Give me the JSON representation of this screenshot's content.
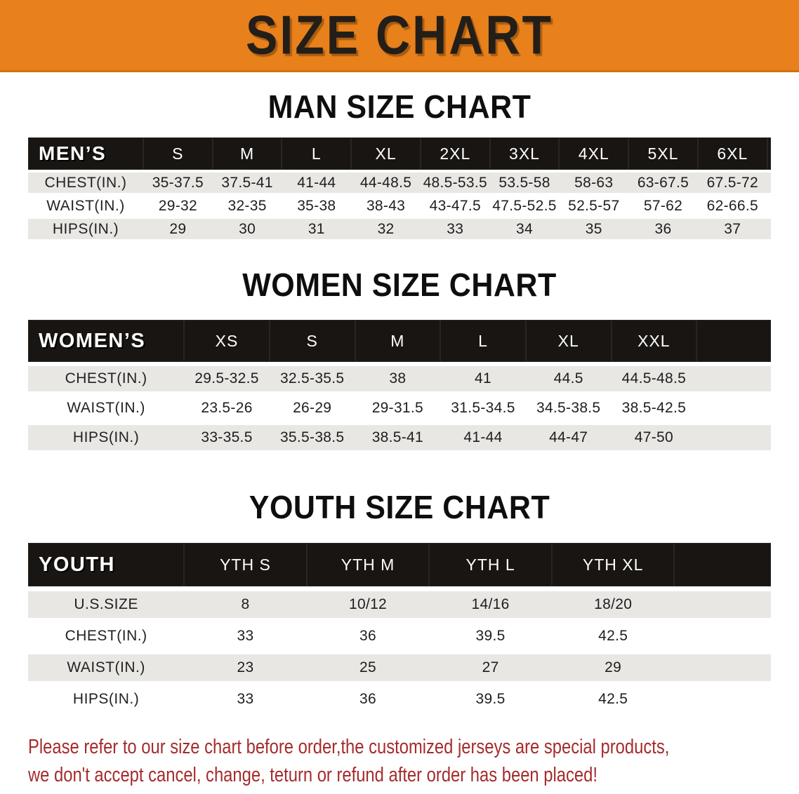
{
  "banner": {
    "title": "SIZE CHART",
    "bg_color": "#E8811B"
  },
  "colors": {
    "header_bar": "#191512",
    "row_stripe": "#E8E7E4",
    "disclaimer_red": "#A52B2C"
  },
  "sections": [
    {
      "key": "men",
      "heading": "MAN SIZE CHART",
      "table": {
        "label": "MEN’S",
        "columns": [
          "S",
          "M",
          "L",
          "XL",
          "2XL",
          "3XL",
          "4XL",
          "5XL",
          "6XL"
        ],
        "rows": [
          {
            "label": "CHEST(IN.)",
            "values": [
              "35-37.5",
              "37.5-41",
              "41-44",
              "44-48.5",
              "48.5-53.5",
              "53.5-58",
              "58-63",
              "63-67.5",
              "67.5-72"
            ]
          },
          {
            "label": "WAIST(IN.)",
            "values": [
              "29-32",
              "32-35",
              "35-38",
              "38-43",
              "43-47.5",
              "47.5-52.5",
              "52.5-57",
              "57-62",
              "62-66.5"
            ]
          },
          {
            "label": "HIPS(IN.)",
            "values": [
              "29",
              "30",
              "31",
              "32",
              "33",
              "34",
              "35",
              "36",
              "37"
            ]
          }
        ]
      }
    },
    {
      "key": "women",
      "heading": "WOMEN SIZE CHART",
      "table": {
        "label": "WOMEN’S",
        "columns": [
          "XS",
          "S",
          "M",
          "L",
          "XL",
          "XXL"
        ],
        "rows": [
          {
            "label": "CHEST(IN.)",
            "values": [
              "29.5-32.5",
              "32.5-35.5",
              "38",
              "41",
              "44.5",
              "44.5-48.5"
            ]
          },
          {
            "label": "WAIST(IN.)",
            "values": [
              "23.5-26",
              "26-29",
              "29-31.5",
              "31.5-34.5",
              "34.5-38.5",
              "38.5-42.5"
            ]
          },
          {
            "label": "HIPS(IN.)",
            "values": [
              "33-35.5",
              "35.5-38.5",
              "38.5-41",
              "41-44",
              "44-47",
              "47-50"
            ]
          }
        ]
      }
    },
    {
      "key": "youth",
      "heading": "YOUTH SIZE CHART",
      "table": {
        "label": "YOUTH",
        "columns": [
          "YTH S",
          "YTH M",
          "YTH L",
          "YTH XL"
        ],
        "rows": [
          {
            "label": "U.S.SIZE",
            "values": [
              "8",
              "10/12",
              "14/16",
              "18/20"
            ]
          },
          {
            "label": "CHEST(IN.)",
            "values": [
              "33",
              "36",
              "39.5",
              "42.5"
            ]
          },
          {
            "label": "WAIST(IN.)",
            "values": [
              "23",
              "25",
              "27",
              "29"
            ]
          },
          {
            "label": "HIPS(IN.)",
            "values": [
              "33",
              "36",
              "39.5",
              "42.5"
            ]
          }
        ]
      }
    }
  ],
  "disclaimer": {
    "line1": "Please refer to our size chart before order,the customized jerseys are special products,",
    "line2": "we don't accept cancel, change, teturn or refund after order has been placed!"
  }
}
